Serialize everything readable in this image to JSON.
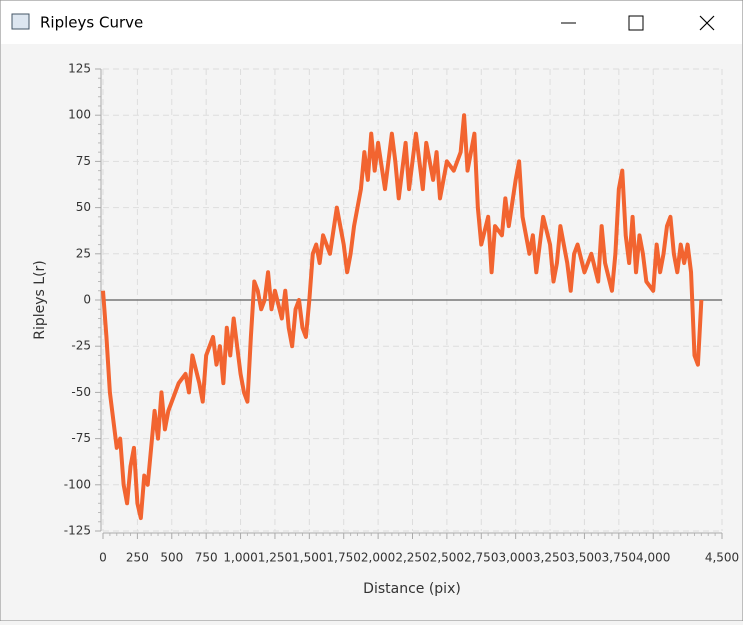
{
  "window_title": "Ripleys Curve",
  "chart_data": {
    "type": "line",
    "x_label": "Distance (pix)",
    "y_label": "Ripleys L(r)",
    "xlim": [
      0,
      4500
    ],
    "ylim": [
      -125,
      125
    ],
    "xticks": [
      0,
      250,
      500,
      750,
      {
        "value": 1000,
        "label": "1,000"
      },
      {
        "value": 1250,
        "label": "1,250"
      },
      {
        "value": 1500,
        "label": "1,500"
      },
      {
        "value": 1750,
        "label": "1,750"
      },
      {
        "value": 2000,
        "label": "2,000"
      },
      {
        "value": 2250,
        "label": "2,250"
      },
      {
        "value": 2500,
        "label": "2,500"
      },
      {
        "value": 2750,
        "label": "2,750"
      },
      {
        "value": 3000,
        "label": "3,000"
      },
      {
        "value": 3250,
        "label": "3,250"
      },
      {
        "value": 3500,
        "label": "3,500"
      },
      {
        "value": 3750,
        "label": "3,750"
      },
      {
        "value": 4000,
        "label": "4,000"
      },
      {
        "value": 4500,
        "label": "4,500"
      }
    ],
    "yticks": [
      -125,
      -100,
      -75,
      -50,
      -25,
      0,
      25,
      50,
      75,
      100,
      125
    ],
    "grid": true,
    "x": [
      0,
      25,
      50,
      75,
      100,
      125,
      150,
      175,
      200,
      225,
      250,
      275,
      300,
      325,
      350,
      375,
      400,
      425,
      450,
      475,
      500,
      550,
      600,
      625,
      650,
      700,
      725,
      750,
      800,
      825,
      850,
      875,
      900,
      925,
      950,
      1000,
      1025,
      1050,
      1075,
      1100,
      1125,
      1150,
      1175,
      1200,
      1225,
      1250,
      1300,
      1325,
      1350,
      1375,
      1400,
      1425,
      1450,
      1475,
      1500,
      1525,
      1550,
      1575,
      1600,
      1650,
      1700,
      1750,
      1775,
      1800,
      1825,
      1850,
      1875,
      1900,
      1925,
      1950,
      1975,
      2000,
      2050,
      2100,
      2125,
      2150,
      2200,
      2225,
      2275,
      2300,
      2325,
      2350,
      2400,
      2425,
      2450,
      2500,
      2550,
      2600,
      2625,
      2650,
      2700,
      2725,
      2750,
      2800,
      2825,
      2850,
      2900,
      2925,
      2950,
      3000,
      3025,
      3050,
      3100,
      3125,
      3150,
      3175,
      3200,
      3250,
      3275,
      3300,
      3325,
      3375,
      3400,
      3425,
      3450,
      3500,
      3550,
      3600,
      3625,
      3650,
      3700,
      3725,
      3750,
      3775,
      3800,
      3825,
      3850,
      3875,
      3900,
      3925,
      3950,
      4000,
      4025,
      4050,
      4075,
      4100,
      4125,
      4150,
      4175,
      4200,
      4225,
      4250,
      4275,
      4300,
      4325,
      4350
    ],
    "series": [
      {
        "color": "#f26430",
        "values": [
          5,
          -20,
          -50,
          -65,
          -80,
          -75,
          -100,
          -110,
          -90,
          -80,
          -110,
          -118,
          -95,
          -100,
          -80,
          -60,
          -75,
          -50,
          -70,
          -60,
          -55,
          -45,
          -40,
          -50,
          -30,
          -45,
          -55,
          -30,
          -20,
          -35,
          -25,
          -45,
          -15,
          -30,
          -10,
          -40,
          -50,
          -55,
          -20,
          10,
          5,
          -5,
          0,
          15,
          -5,
          5,
          -10,
          5,
          -15,
          -25,
          -5,
          0,
          -15,
          -20,
          0,
          25,
          30,
          20,
          35,
          25,
          50,
          30,
          15,
          25,
          40,
          50,
          60,
          80,
          65,
          90,
          70,
          85,
          60,
          90,
          75,
          55,
          85,
          60,
          90,
          75,
          60,
          85,
          65,
          80,
          55,
          75,
          70,
          80,
          100,
          70,
          90,
          50,
          30,
          45,
          15,
          40,
          35,
          55,
          40,
          65,
          75,
          45,
          25,
          35,
          15,
          30,
          45,
          30,
          10,
          20,
          40,
          20,
          5,
          25,
          30,
          15,
          25,
          10,
          40,
          20,
          5,
          25,
          60,
          70,
          35,
          20,
          45,
          15,
          35,
          25,
          10,
          5,
          30,
          15,
          25,
          40,
          45,
          25,
          15,
          30,
          20,
          30,
          15,
          -30,
          -35,
          0
        ]
      }
    ]
  }
}
